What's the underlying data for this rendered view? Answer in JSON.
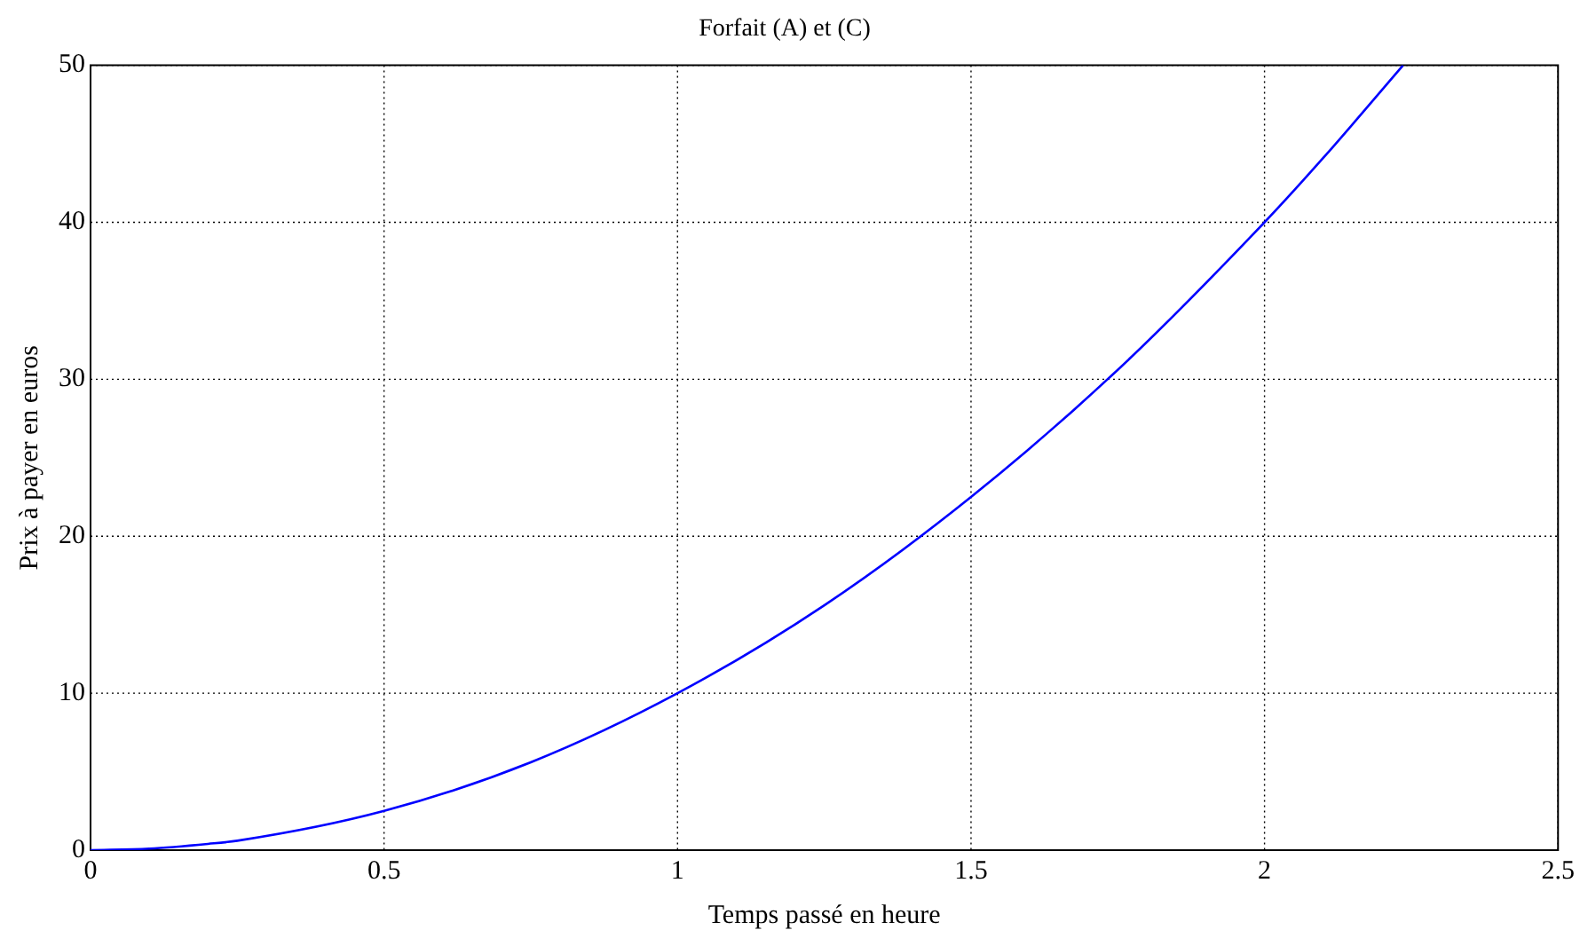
{
  "chart_data": {
    "type": "line",
    "title": "Forfait (A) et (C)",
    "xlabel": "Temps passé en heure",
    "ylabel": "Prix à payer en euros",
    "series": [
      {
        "color": "#0000ff",
        "x": [
          0,
          0.1,
          0.2,
          0.25,
          0.5,
          0.75,
          1,
          1.25,
          1.5,
          1.75,
          2,
          2.1,
          2.236
        ],
        "values": [
          0,
          0.1,
          0.4,
          0.6,
          2.5,
          5.6,
          10,
          15.6,
          22.5,
          30.6,
          40,
          44.1,
          50
        ]
      }
    ],
    "xlim": [
      0,
      2.5
    ],
    "xticks": [
      0,
      0.5,
      1,
      1.5,
      2,
      2.5
    ],
    "ylim": [
      0,
      50
    ],
    "yticks": [
      0,
      10,
      20,
      30,
      40,
      50
    ],
    "grid": true,
    "legend": false,
    "marker": "none",
    "line_style": "solid"
  }
}
